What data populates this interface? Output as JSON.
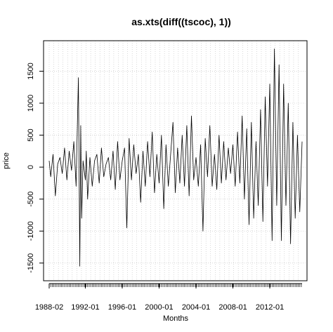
{
  "chart_data": {
    "type": "line",
    "title": "as.xts(diff((tscoc), 1))",
    "xlabel": "Months",
    "ylabel": "price",
    "x_tick_labels": [
      "1988-02",
      "1992-01",
      "1996-01",
      "2000-01",
      "2004-01",
      "2008-01",
      "2012-01"
    ],
    "x_tick_years": [
      1988.08,
      1992.0,
      1996.0,
      2000.0,
      2004.0,
      2008.0,
      2012.0
    ],
    "xlim": [
      1988.08,
      2015.5
    ],
    "y_ticks": [
      -1500,
      -1000,
      -500,
      0,
      500,
      1000,
      1500
    ],
    "y_tick_labels": [
      "-1500",
      "-1000",
      "-500",
      "0",
      "500",
      "1000",
      "1500"
    ],
    "ylim": [
      -1700,
      1900
    ],
    "grid": true,
    "legend": "none",
    "colors": {
      "line": "#000000",
      "grid": "#bfbfbf",
      "axis": "#000000"
    },
    "series": [
      {
        "x": [
          1988.08,
          1988.25,
          1988.5,
          1988.75,
          1989.0,
          1989.25,
          1989.5,
          1989.75,
          1990.0,
          1990.25,
          1990.5,
          1990.75,
          1991.0,
          1991.25,
          1991.4,
          1991.5,
          1991.6,
          1991.75,
          1992.0,
          1992.1,
          1992.25,
          1992.5,
          1992.75,
          1993.0,
          1993.25,
          1993.5,
          1993.75,
          1994.0,
          1994.25,
          1994.5,
          1994.75,
          1995.0,
          1995.25,
          1995.5,
          1995.75,
          1996.0,
          1996.25,
          1996.5,
          1996.75,
          1997.0,
          1997.25,
          1997.5,
          1997.75,
          1998.0,
          1998.25,
          1998.5,
          1998.75,
          1999.0,
          1999.25,
          1999.5,
          1999.75,
          2000.0,
          2000.25,
          2000.5,
          2000.75,
          2001.0,
          2001.25,
          2001.5,
          2001.75,
          2002.0,
          2002.25,
          2002.5,
          2002.75,
          2003.0,
          2003.25,
          2003.5,
          2003.75,
          2004.0,
          2004.25,
          2004.5,
          2004.75,
          2005.0,
          2005.25,
          2005.5,
          2005.75,
          2006.0,
          2006.25,
          2006.5,
          2006.75,
          2007.0,
          2007.25,
          2007.5,
          2007.75,
          2008.0,
          2008.25,
          2008.5,
          2008.75,
          2009.0,
          2009.25,
          2009.5,
          2009.75,
          2010.0,
          2010.25,
          2010.5,
          2010.75,
          2011.0,
          2011.25,
          2011.5,
          2011.75,
          2012.0,
          2012.25,
          2012.5,
          2012.75,
          2013.0,
          2013.25,
          2013.5,
          2013.75,
          2014.0,
          2014.25,
          2014.5,
          2014.75,
          2015.0,
          2015.25,
          2015.5
        ],
        "y": [
          100,
          -150,
          200,
          -450,
          50,
          150,
          -100,
          300,
          -200,
          250,
          -50,
          400,
          -300,
          1400,
          -1550,
          650,
          -800,
          100,
          -200,
          250,
          -500,
          150,
          -300,
          100,
          200,
          -250,
          300,
          -150,
          50,
          150,
          -200,
          250,
          -350,
          400,
          -200,
          100,
          300,
          -950,
          450,
          -200,
          350,
          -100,
          200,
          -550,
          250,
          -300,
          400,
          -150,
          550,
          -400,
          200,
          -250,
          500,
          -650,
          350,
          -300,
          200,
          700,
          -400,
          300,
          -250,
          500,
          -300,
          650,
          -450,
          800,
          -200,
          150,
          -300,
          350,
          -1000,
          450,
          -150,
          650,
          -300,
          200,
          -350,
          500,
          -250,
          400,
          -200,
          300,
          -100,
          350,
          -300,
          550,
          -250,
          800,
          -500,
          600,
          -900,
          700,
          -800,
          400,
          -600,
          900,
          -850,
          1100,
          -300,
          1300,
          -1150,
          1850,
          -600,
          1600,
          -1150,
          1300,
          -600,
          1000,
          -1200,
          700,
          -800,
          500,
          -700,
          400
        ]
      }
    ]
  }
}
